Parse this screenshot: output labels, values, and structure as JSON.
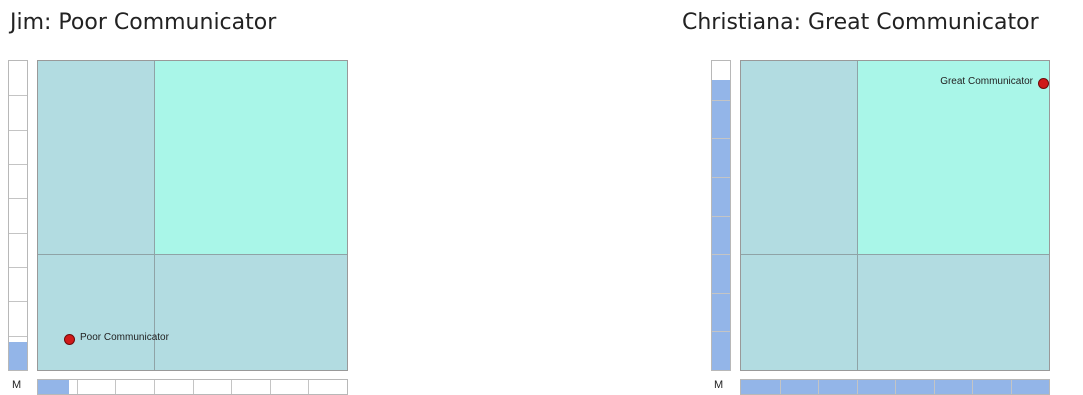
{
  "colors": {
    "quadrant_base": "#b2dce1",
    "quadrant_highlight": "#a9f6e8",
    "point": "#d01919",
    "gauge_fill": "#93b5e8"
  },
  "chart_data": [
    {
      "type": "scatter",
      "title": "Jim: Poor Communicator",
      "x_axis_letter": "M",
      "xlim": [
        0,
        1
      ],
      "ylim": [
        0,
        1
      ],
      "quadrant_split": {
        "x": 0.375,
        "y": 0.375
      },
      "highlight_quadrant": "top-right",
      "grid": false,
      "points": [
        {
          "label": "Poor Communicator",
          "x": 0.1,
          "y": 0.1
        }
      ],
      "vertical_gauge": {
        "segments": 9,
        "value": 0.09
      },
      "horizontal_gauge": {
        "segments": 8,
        "value": 0.1
      }
    },
    {
      "type": "scatter",
      "title": "Christiana: Great Communicator",
      "x_axis_letter": "M",
      "xlim": [
        0,
        1
      ],
      "ylim": [
        0,
        1
      ],
      "quadrant_split": {
        "x": 0.375,
        "y": 0.375
      },
      "highlight_quadrant": "top-right",
      "grid": false,
      "points": [
        {
          "label": "Great Communicator",
          "x": 0.98,
          "y": 0.93
        }
      ],
      "vertical_gauge": {
        "segments": 8,
        "value": 0.94
      },
      "horizontal_gauge": {
        "segments": 8,
        "value": 1.0
      }
    }
  ]
}
